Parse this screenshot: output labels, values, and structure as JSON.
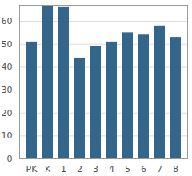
{
  "chart_data": {
    "type": "bar",
    "categories": [
      "PK",
      "K",
      "1",
      "2",
      "3",
      "4",
      "5",
      "6",
      "7",
      "8"
    ],
    "values": [
      51,
      67,
      66,
      44,
      49,
      51,
      55,
      54,
      58,
      53
    ],
    "color": "#33668a",
    "ylim": [
      0,
      67
    ],
    "yticks": [
      0,
      10,
      20,
      30,
      40,
      50,
      60
    ],
    "grid": true
  }
}
